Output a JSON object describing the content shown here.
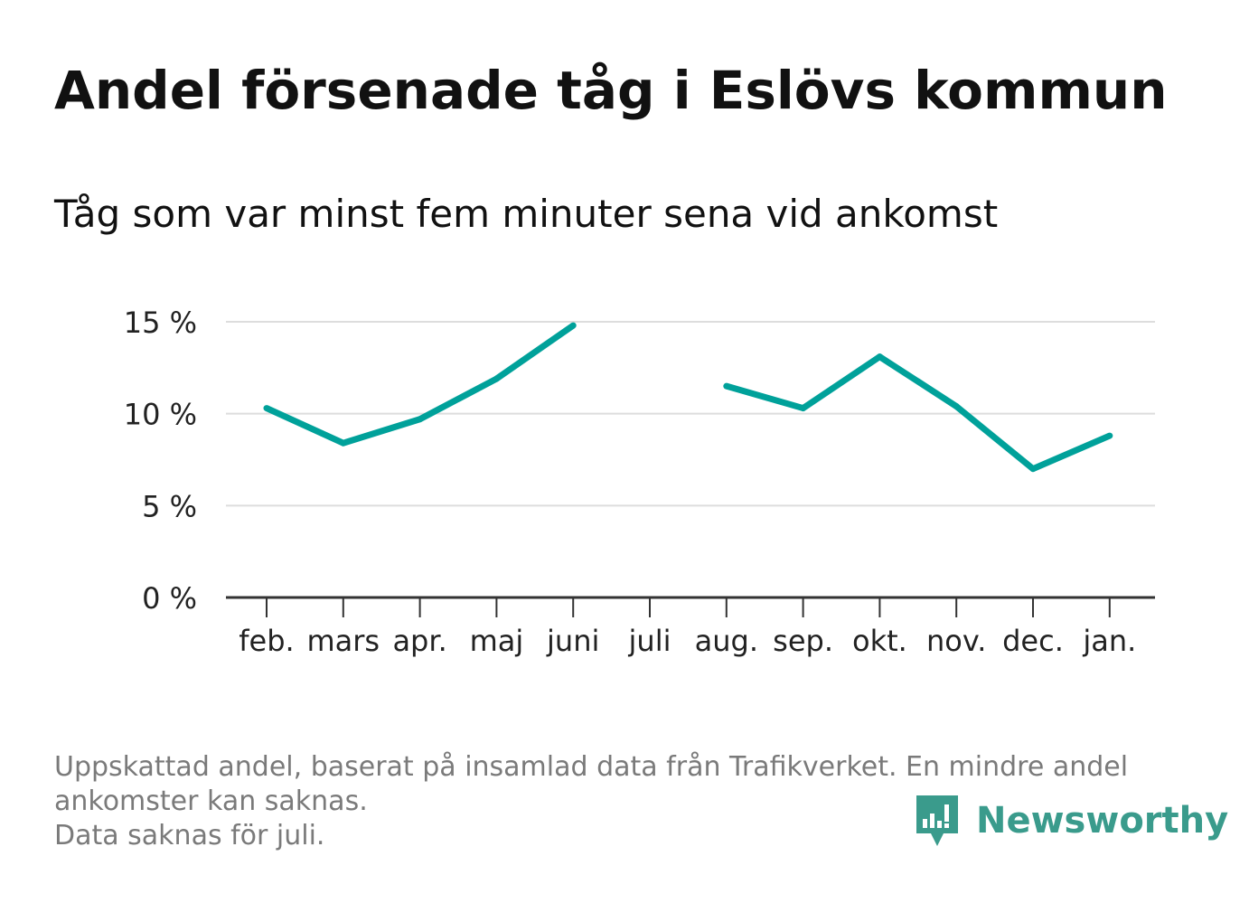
{
  "title": "Andel försenade tåg i Eslövs kommun",
  "subtitle": "Tåg som var minst fem minuter sena vid ankomst",
  "footnote": [
    "Uppskattad andel, baserat på insamlad data från Trafikverket. En mindre andel",
    "ankomster kan saknas.",
    "Data saknas för juli."
  ],
  "brand": {
    "name": "Newsworthy",
    "logo_icon": "newsworthy-logo-icon"
  },
  "colors": {
    "line": "#00a19a",
    "grid": "#dddddd",
    "axis": "#333333",
    "text": "#111111"
  },
  "chart_data": {
    "type": "line",
    "categories": [
      "feb.",
      "mars",
      "apr.",
      "maj",
      "juni",
      "juli",
      "aug.",
      "sep.",
      "okt.",
      "nov.",
      "dec.",
      "jan."
    ],
    "values": [
      10.3,
      8.4,
      9.7,
      11.9,
      14.8,
      null,
      11.5,
      10.3,
      13.1,
      10.4,
      7.0,
      8.8
    ],
    "yticks": [
      "0 %",
      "5 %",
      "10 %",
      "15 %"
    ],
    "ytick_values": [
      0,
      5,
      10,
      15
    ],
    "ylim": [
      0,
      15
    ],
    "grid": true,
    "xlabel": "",
    "ylabel": ""
  }
}
